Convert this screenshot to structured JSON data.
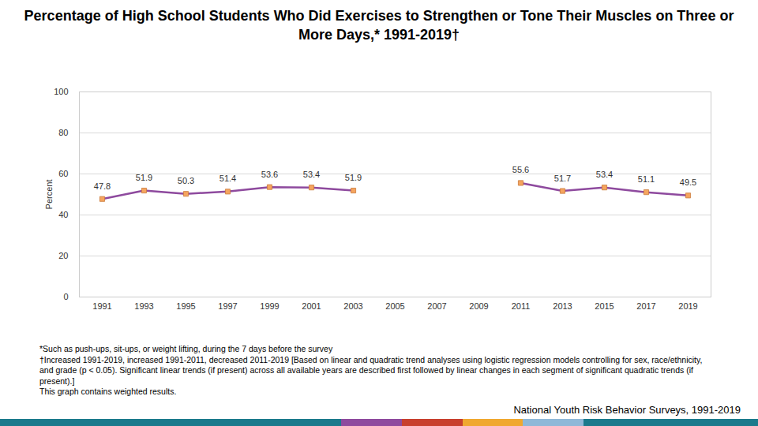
{
  "chart_data": {
    "type": "line",
    "title": "Percentage of High School Students Who Did Exercises to Strengthen or Tone Their Muscles on Three or More Days,* 1991-2019†",
    "y_label": "Percent",
    "categories": [
      "1991",
      "1993",
      "1995",
      "1997",
      "1999",
      "2001",
      "2003",
      "2005",
      "2007",
      "2009",
      "2011",
      "2013",
      "2015",
      "2017",
      "2019"
    ],
    "values": [
      47.8,
      51.9,
      50.3,
      51.4,
      53.6,
      53.4,
      51.9,
      null,
      null,
      null,
      55.6,
      51.7,
      53.4,
      51.1,
      49.5
    ],
    "color": "#8e4a9e",
    "marker": "square",
    "data_labels": true,
    "ylim": [
      0,
      100
    ],
    "yticks": [
      0,
      20,
      40,
      60,
      80,
      100
    ],
    "grid": true,
    "notes": [
      "*Such as push-ups, sit-ups, or weight lifting, during the 7 days before the survey",
      "†Increased 1991-2019, increased 1991-2011, decreased 2011-2019 [Based on linear and quadratic trend analyses using logistic regression models controlling for sex, race/ethnicity, and grade (p < 0.05). Significant linear trends (if present) across all available years are described first followed by linear changes in each segment of significant quadratic trends (if present).]",
      "This graph contains weighted results."
    ],
    "source": "National Youth Risk Behavior Surveys, 1991-2019"
  }
}
